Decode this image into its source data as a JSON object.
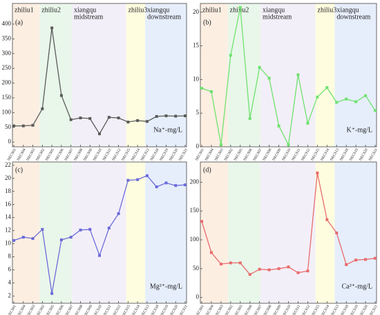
{
  "chart_data": [
    {
      "type": "line",
      "panel": "(a)",
      "unit_label": "Na⁺-mg/L",
      "color": "#5a5a5a",
      "regions": [
        [
          "zhiliu1"
        ],
        [
          "zhiliu2"
        ],
        [
          "xiangqu",
          "midstream"
        ],
        [
          "zhiliu3"
        ],
        [
          "xiangqu",
          "downstream"
        ]
      ],
      "categories": [
        "NECS01",
        "NECS04",
        "NECS03",
        "NECS02",
        "NECS05",
        "NECS06",
        "NECS07",
        "NECS08",
        "NECS09",
        "NECS10",
        "NECS11",
        "NECS12",
        "NECS15",
        "NECS14",
        "NECS13",
        "NECS18",
        "NECS19",
        "NECS20",
        "NECS21"
      ],
      "values": [
        55,
        55,
        57,
        113,
        387,
        158,
        76,
        82,
        80,
        28,
        84,
        82,
        68,
        73,
        70,
        87,
        89,
        88,
        89
      ],
      "ylim": [
        -16,
        470
      ],
      "yticks": [
        0,
        50,
        100,
        150,
        200,
        250,
        300,
        350,
        400
      ]
    },
    {
      "type": "line",
      "panel": "(b)",
      "unit_label": "K⁺-mg/L",
      "color": "#6fe26f",
      "regions": [
        [
          "zhiliu1"
        ],
        [
          "zhiliu2"
        ],
        [
          "xiangqu",
          "midstream"
        ],
        [
          "zhiliu3"
        ],
        [
          "xiangqu",
          "downstream"
        ]
      ],
      "categories": [
        "NECS01",
        "NECS04",
        "NECS03",
        "NECS02",
        "NECS05",
        "NECS06",
        "NECS07",
        "NECS08",
        "NECS09",
        "NECS10",
        "NECS11",
        "NECS12",
        "NECS15",
        "NECS14",
        "NECS13",
        "NECS18",
        "NECS19",
        "NECS20",
        "NECS21"
      ],
      "values": [
        8.7,
        8.2,
        0.3,
        13.6,
        20.7,
        4.2,
        11.8,
        10.2,
        3.1,
        0.3,
        10.7,
        3.5,
        7.4,
        8.8,
        6.6,
        7.1,
        6.7,
        7.6,
        5.4
      ],
      "ylim": [
        0,
        21.3
      ],
      "yticks": [
        0,
        5,
        10,
        15,
        20
      ]
    },
    {
      "type": "line",
      "panel": "(c)",
      "unit_label": "Mg²⁺-mg/L",
      "color": "#6b6bd9",
      "categories": [
        "NECS01",
        "NECS04",
        "NECS03",
        "NECS02",
        "NECS05",
        "NECS06",
        "NECS07",
        "NECS08",
        "NECS09",
        "NECS10",
        "NECS11",
        "NECS12",
        "NECS15",
        "NECS14",
        "NECS13",
        "NECS18",
        "NECS19",
        "NECS20",
        "NECS21"
      ],
      "values": [
        10.5,
        11,
        10.8,
        12.2,
        2.4,
        10.6,
        11,
        12.1,
        12.2,
        8.2,
        12.4,
        14.6,
        19.7,
        19.8,
        20.4,
        18.7,
        19.3,
        18.9,
        19
      ],
      "ylim": [
        0.9,
        22.5
      ],
      "yticks": [
        2,
        4,
        6,
        8,
        10,
        12,
        14,
        16,
        18,
        20,
        22
      ]
    },
    {
      "type": "line",
      "panel": "(d)",
      "unit_label": "Ca²⁺-mg/L",
      "color": "#e86b6b",
      "categories": [
        "NECS01",
        "NECS04",
        "NECS03",
        "NECS02",
        "NECS05",
        "NECS06",
        "NECS07",
        "NECS08",
        "NECS09",
        "NECS10",
        "NECS11",
        "NECS12",
        "NECS15",
        "NECS14",
        "NECS13",
        "NECS18",
        "NECS19",
        "NECS20",
        "NECS21"
      ],
      "values": [
        132,
        78,
        58,
        60,
        60,
        40,
        49,
        48,
        50,
        53,
        43,
        46,
        216,
        135,
        112,
        57,
        65,
        66,
        68
      ],
      "ylim": [
        -10,
        235
      ],
      "yticks": [
        0,
        50,
        100,
        150,
        200
      ]
    }
  ]
}
